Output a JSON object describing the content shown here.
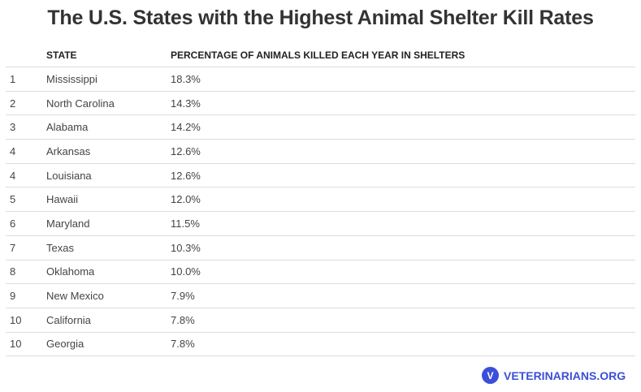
{
  "chart_data": {
    "type": "table",
    "title": "The U.S. States with the Highest Animal Shelter Kill Rates",
    "columns": [
      "",
      "STATE",
      "PERCENTAGE OF ANIMALS KILLED EACH YEAR IN SHELTERS"
    ],
    "rows": [
      [
        "1",
        "Mississippi",
        "18.3%"
      ],
      [
        "2",
        "North Carolina",
        "14.3%"
      ],
      [
        "3",
        "Alabama",
        "14.2%"
      ],
      [
        "4",
        "Arkansas",
        "12.6%"
      ],
      [
        "4",
        "Louisiana",
        "12.6%"
      ],
      [
        "5",
        "Hawaii",
        "12.0%"
      ],
      [
        "6",
        "Maryland",
        "11.5%"
      ],
      [
        "7",
        "Texas",
        "10.3%"
      ],
      [
        "8",
        "Oklahoma",
        "10.0%"
      ],
      [
        "9",
        "New Mexico",
        "7.9%"
      ],
      [
        "10",
        "California",
        "7.8%"
      ],
      [
        "10",
        "Georgia",
        "7.8%"
      ]
    ]
  },
  "footer": {
    "logo_text": "VETERINARIANS.ORG",
    "brand_color": "#3b4fd8"
  }
}
